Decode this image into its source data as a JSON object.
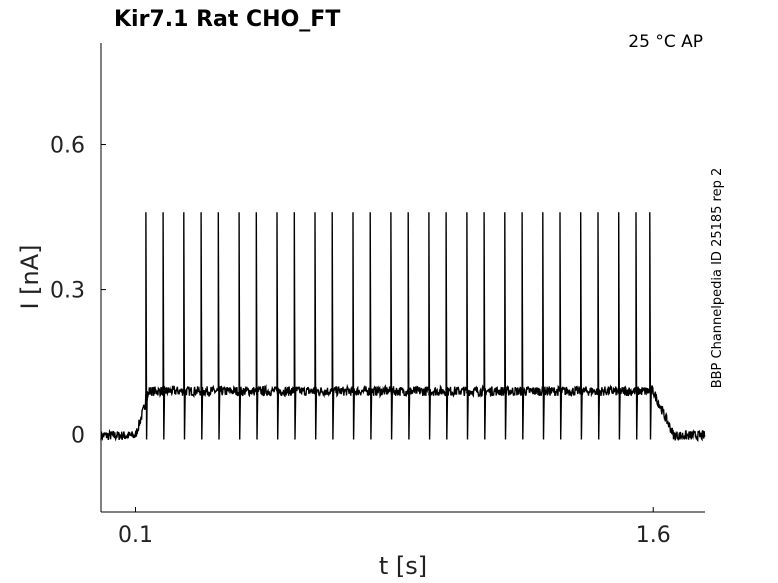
{
  "chart_data": {
    "type": "line",
    "title": "Kir7.1  Rat  CHO_FT",
    "condition": "25 °C  AP",
    "side_label": "BBP Channelpedia ID 25185 rep 2",
    "xlabel": "t [s]",
    "ylabel": "I [nA]",
    "xlim": [
      0.0,
      1.75
    ],
    "ylim": [
      -0.16,
      0.81
    ],
    "x_ticks": [
      {
        "value": 0.1,
        "label": "0.1"
      },
      {
        "value": 1.6,
        "label": "1.6"
      }
    ],
    "y_ticks": [
      {
        "value": 0,
        "label": "0"
      },
      {
        "value": 0.3,
        "label": "0.3"
      },
      {
        "value": 0.6,
        "label": "0.6"
      }
    ],
    "grid": false,
    "series": [
      {
        "color": "#000000",
        "baseline_before": -0.002,
        "step_start": 0.1,
        "step_end": 1.6,
        "plateau": 0.09,
        "baseline_after": -0.002,
        "spike_times": [
          0.13,
          0.18,
          0.24,
          0.29,
          0.34,
          0.4,
          0.45,
          0.51,
          0.56,
          0.62,
          0.67,
          0.73,
          0.78,
          0.84,
          0.89,
          0.95,
          1.0,
          1.06,
          1.11,
          1.17,
          1.22,
          1.28,
          1.33,
          1.39,
          1.44,
          1.5,
          1.55,
          1.59
        ],
        "spike_peak": 0.46,
        "spike_trough": -0.01
      }
    ]
  }
}
